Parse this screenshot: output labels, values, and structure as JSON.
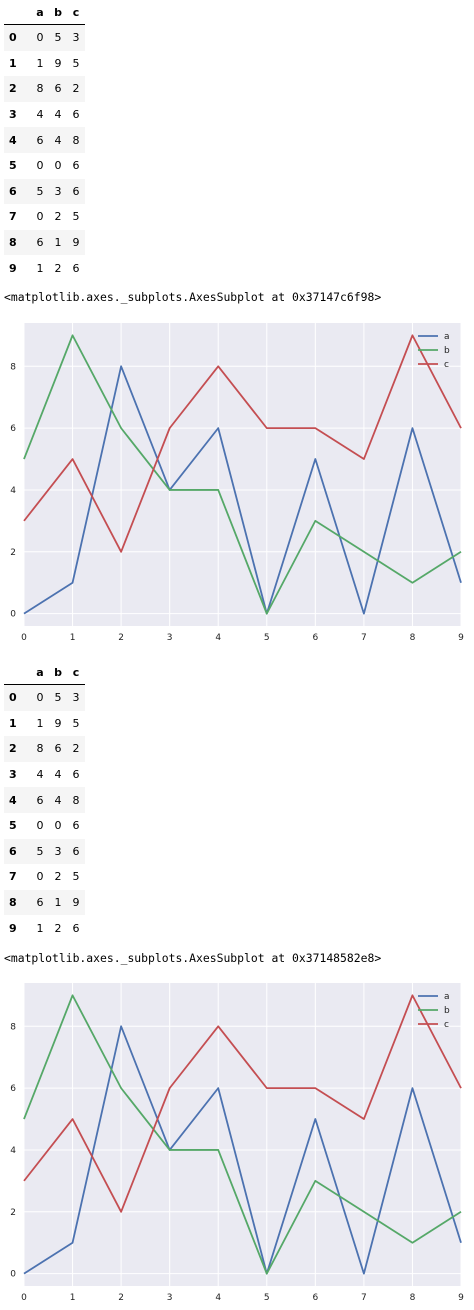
{
  "outputs": [
    {
      "table": {
        "columns": [
          "a",
          "b",
          "c"
        ],
        "index": [
          "0",
          "1",
          "2",
          "3",
          "4",
          "5",
          "6",
          "7",
          "8",
          "9"
        ],
        "rows": [
          [
            "0",
            "5",
            "3"
          ],
          [
            "1",
            "9",
            "5"
          ],
          [
            "8",
            "6",
            "2"
          ],
          [
            "4",
            "4",
            "6"
          ],
          [
            "6",
            "4",
            "8"
          ],
          [
            "0",
            "0",
            "6"
          ],
          [
            "5",
            "3",
            "6"
          ],
          [
            "0",
            "2",
            "5"
          ],
          [
            "6",
            "1",
            "9"
          ],
          [
            "1",
            "2",
            "6"
          ]
        ]
      },
      "repr": "<matplotlib.axes._subplots.AxesSubplot at 0x37147c6f98>"
    },
    {
      "table": {
        "columns": [
          "a",
          "b",
          "c"
        ],
        "index": [
          "0",
          "1",
          "2",
          "3",
          "4",
          "5",
          "6",
          "7",
          "8",
          "9"
        ],
        "rows": [
          [
            "0",
            "5",
            "3"
          ],
          [
            "1",
            "9",
            "5"
          ],
          [
            "8",
            "6",
            "2"
          ],
          [
            "4",
            "4",
            "6"
          ],
          [
            "6",
            "4",
            "8"
          ],
          [
            "0",
            "0",
            "6"
          ],
          [
            "5",
            "3",
            "6"
          ],
          [
            "0",
            "2",
            "5"
          ],
          [
            "6",
            "1",
            "9"
          ],
          [
            "1",
            "2",
            "6"
          ]
        ]
      },
      "repr": "<matplotlib.axes._subplots.AxesSubplot at 0x37148582e8>"
    }
  ],
  "colors": {
    "a": "#4c72b0",
    "b": "#55a868",
    "c": "#c44e52",
    "plot_bg": "#eaeaf2",
    "grid": "#ffffff"
  },
  "chart_data": [
    {
      "type": "line",
      "x": [
        0,
        1,
        2,
        3,
        4,
        5,
        6,
        7,
        8,
        9
      ],
      "series": [
        {
          "name": "a",
          "values": [
            0,
            1,
            8,
            4,
            6,
            0,
            5,
            0,
            6,
            1
          ]
        },
        {
          "name": "b",
          "values": [
            5,
            9,
            6,
            4,
            4,
            0,
            3,
            2,
            1,
            2
          ]
        },
        {
          "name": "c",
          "values": [
            3,
            5,
            2,
            6,
            8,
            6,
            6,
            5,
            9,
            6
          ]
        }
      ],
      "xticks": [
        "0",
        "1",
        "2",
        "3",
        "4",
        "5",
        "6",
        "7",
        "8",
        "9"
      ],
      "yticks": [
        "0",
        "2",
        "4",
        "6",
        "8"
      ],
      "xlim": [
        0,
        9
      ],
      "ylim": [
        -0.4,
        9.4
      ],
      "grid": true,
      "legend": "top-right",
      "title": "",
      "xlabel": "",
      "ylabel": ""
    },
    {
      "type": "line",
      "x": [
        0,
        1,
        2,
        3,
        4,
        5,
        6,
        7,
        8,
        9
      ],
      "series": [
        {
          "name": "a",
          "values": [
            0,
            1,
            8,
            4,
            6,
            0,
            5,
            0,
            6,
            1
          ]
        },
        {
          "name": "b",
          "values": [
            5,
            9,
            6,
            4,
            4,
            0,
            3,
            2,
            1,
            2
          ]
        },
        {
          "name": "c",
          "values": [
            3,
            5,
            2,
            6,
            8,
            6,
            6,
            5,
            9,
            6
          ]
        }
      ],
      "xticks": [
        "0",
        "1",
        "2",
        "3",
        "4",
        "5",
        "6",
        "7",
        "8",
        "9"
      ],
      "yticks": [
        "0",
        "2",
        "4",
        "6",
        "8"
      ],
      "xlim": [
        0,
        9
      ],
      "ylim": [
        -0.4,
        9.4
      ],
      "grid": true,
      "legend": "top-right",
      "title": "",
      "xlabel": "",
      "ylabel": ""
    }
  ]
}
